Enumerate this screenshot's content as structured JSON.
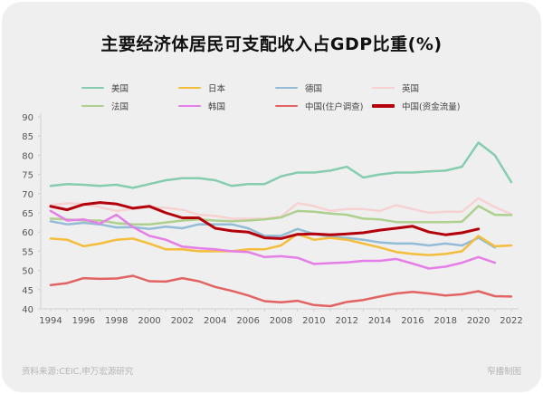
{
  "chart_data": {
    "type": "line",
    "title": "主要经济体居民可支配收入占GDP比重(%)",
    "xlabel": "",
    "ylabel": "",
    "xlim": [
      1994,
      2022
    ],
    "ylim": [
      40,
      90
    ],
    "yticks": [
      40,
      45,
      50,
      55,
      60,
      65,
      70,
      75,
      80,
      85,
      90
    ],
    "xticks": [
      1994,
      1996,
      1998,
      2000,
      2002,
      2004,
      2006,
      2008,
      2010,
      2012,
      2014,
      2016,
      2018,
      2020,
      2022
    ],
    "grid": false,
    "legend_position": "top",
    "series": [
      {
        "name": "美国",
        "color": "#86cdb0",
        "start": 1994,
        "values": [
          72,
          72.5,
          72.3,
          72,
          72.3,
          71.5,
          72.5,
          73.5,
          74,
          74,
          73.5,
          72,
          72.5,
          72.5,
          74.5,
          75.5,
          75.5,
          76,
          77,
          74.2,
          75,
          75.5,
          75.5,
          75.8,
          76,
          77,
          83.3,
          80,
          73
        ]
      },
      {
        "name": "日本",
        "color": "#f5bd3c",
        "start": 1994,
        "values": [
          58.3,
          58,
          56.3,
          57,
          58,
          58.3,
          57,
          55.5,
          55.5,
          55,
          55,
          55,
          55.5,
          55.5,
          56.5,
          59.5,
          58,
          58.5,
          58,
          57,
          56,
          54.8,
          54.3,
          54,
          54.3,
          55,
          59,
          56.3,
          56.5
        ]
      },
      {
        "name": "德国",
        "color": "#93bcd6",
        "start": 1994,
        "values": [
          62.8,
          62,
          62.4,
          62,
          61.2,
          61.3,
          60.8,
          61.4,
          61,
          62,
          62,
          62,
          61,
          59,
          59,
          60.8,
          59.5,
          58.8,
          58.5,
          58,
          57.3,
          57,
          57,
          56.5,
          57,
          56.5,
          58.5,
          56
        ]
      },
      {
        "name": "英国",
        "color": "#f7d2d2",
        "start": 1994,
        "values": [
          67,
          67.5,
          67.3,
          66.5,
          65.5,
          66,
          66.5,
          66.3,
          65.8,
          64.5,
          64.2,
          63.5,
          63.5,
          63.5,
          64,
          67.5,
          66.8,
          65.5,
          66,
          66,
          65.5,
          67,
          66,
          65,
          65.3,
          65.3,
          68.8,
          66.5,
          64.7
        ]
      },
      {
        "name": "法国",
        "color": "#aed08f",
        "start": 1994,
        "values": [
          63.5,
          63.3,
          63,
          63,
          62.3,
          62,
          62,
          62.5,
          63,
          63.3,
          63,
          62.8,
          63,
          63.3,
          63.8,
          65.5,
          65.3,
          64.8,
          64.5,
          63.5,
          63.3,
          62.6,
          62.6,
          62.6,
          62.6,
          62.7,
          66.8,
          64.5,
          64.4
        ]
      },
      {
        "name": "韩国",
        "color": "#e57ee6",
        "start": 1994,
        "values": [
          65.5,
          63,
          63.3,
          62.2,
          64.5,
          61.3,
          59,
          58,
          56.2,
          55.8,
          55.5,
          55,
          54.8,
          53.5,
          53.7,
          53.3,
          51.7,
          51.9,
          52.1,
          52.5,
          52.5,
          53,
          51.8,
          50.5,
          51,
          52,
          53.5,
          52
        ]
      },
      {
        "name": "中国(住户调查)",
        "color": "#e36262",
        "start": 1994,
        "values": [
          46.2,
          46.7,
          48,
          47.8,
          47.9,
          48.6,
          47.2,
          47.1,
          48,
          47.2,
          45.7,
          44.7,
          43.5,
          42,
          41.7,
          42.1,
          41,
          40.7,
          41.8,
          42.3,
          43.2,
          44,
          44.4,
          44,
          43.5,
          43.8,
          44.6,
          43.3,
          43.2
        ]
      },
      {
        "name": "中国(资金流量)",
        "color": "#b4000b",
        "start": 1994,
        "values": [
          66.7,
          65.8,
          67.2,
          67.7,
          67.3,
          66.2,
          66.7,
          65,
          63.7,
          63.7,
          61,
          60.3,
          60,
          58.5,
          58.3,
          59.4,
          59.5,
          59.3,
          59.5,
          59.8,
          60.5,
          61,
          61.5,
          60,
          59.3,
          59.8,
          60.8
        ]
      }
    ]
  },
  "footer": {
    "source": "资料来源:CEIC,申万宏源研究",
    "credit": "窄播制图"
  }
}
